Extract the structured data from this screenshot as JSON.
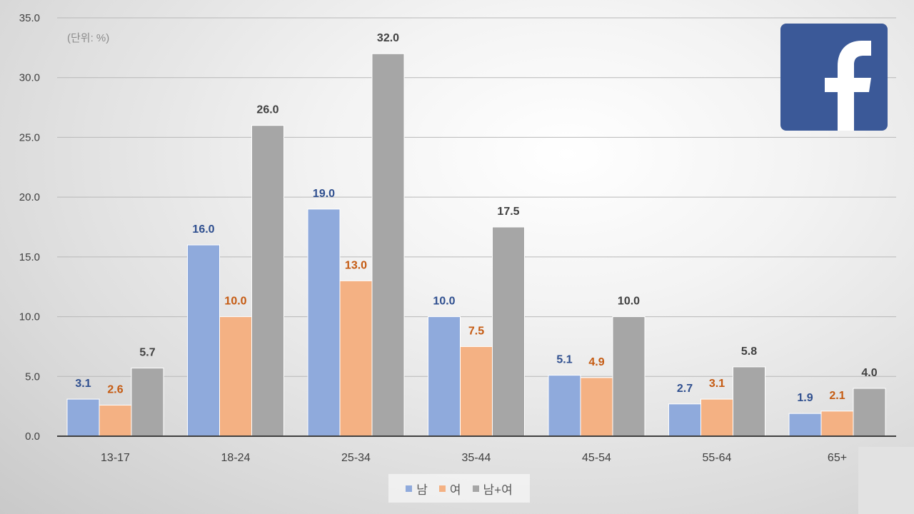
{
  "unit_note": "(단위: %)",
  "logo": {
    "icon": "facebook-logo",
    "color": "#3b5998",
    "glyph": "f"
  },
  "colors": {
    "male": "#8faadc",
    "female": "#f4b183",
    "total": "#a6a6a6",
    "male_label": "#2f4f8f",
    "female_label": "#c55a11",
    "total_label": "#404040"
  },
  "chart_data": {
    "type": "bar",
    "title": "",
    "xlabel": "",
    "ylabel": "",
    "ylim": [
      0,
      35
    ],
    "yticks": [
      "0.0",
      "5.0",
      "10.0",
      "15.0",
      "20.0",
      "25.0",
      "30.0",
      "35.0"
    ],
    "grid": true,
    "legend_position": "bottom",
    "categories": [
      "13-17",
      "18-24",
      "25-34",
      "35-44",
      "45-54",
      "55-64",
      "65+"
    ],
    "series": [
      {
        "name": "남",
        "color": "#8faadc",
        "label_color": "#2f4f8f",
        "values": [
          3.1,
          16.0,
          19.0,
          10.0,
          5.1,
          2.7,
          1.9
        ]
      },
      {
        "name": "여",
        "color": "#f4b183",
        "label_color": "#c55a11",
        "values": [
          2.6,
          10.0,
          13.0,
          7.5,
          4.9,
          3.1,
          2.1
        ]
      },
      {
        "name": "남+여",
        "color": "#a6a6a6",
        "label_color": "#404040",
        "values": [
          5.7,
          26.0,
          32.0,
          17.5,
          10.0,
          5.8,
          4.0
        ]
      }
    ]
  }
}
